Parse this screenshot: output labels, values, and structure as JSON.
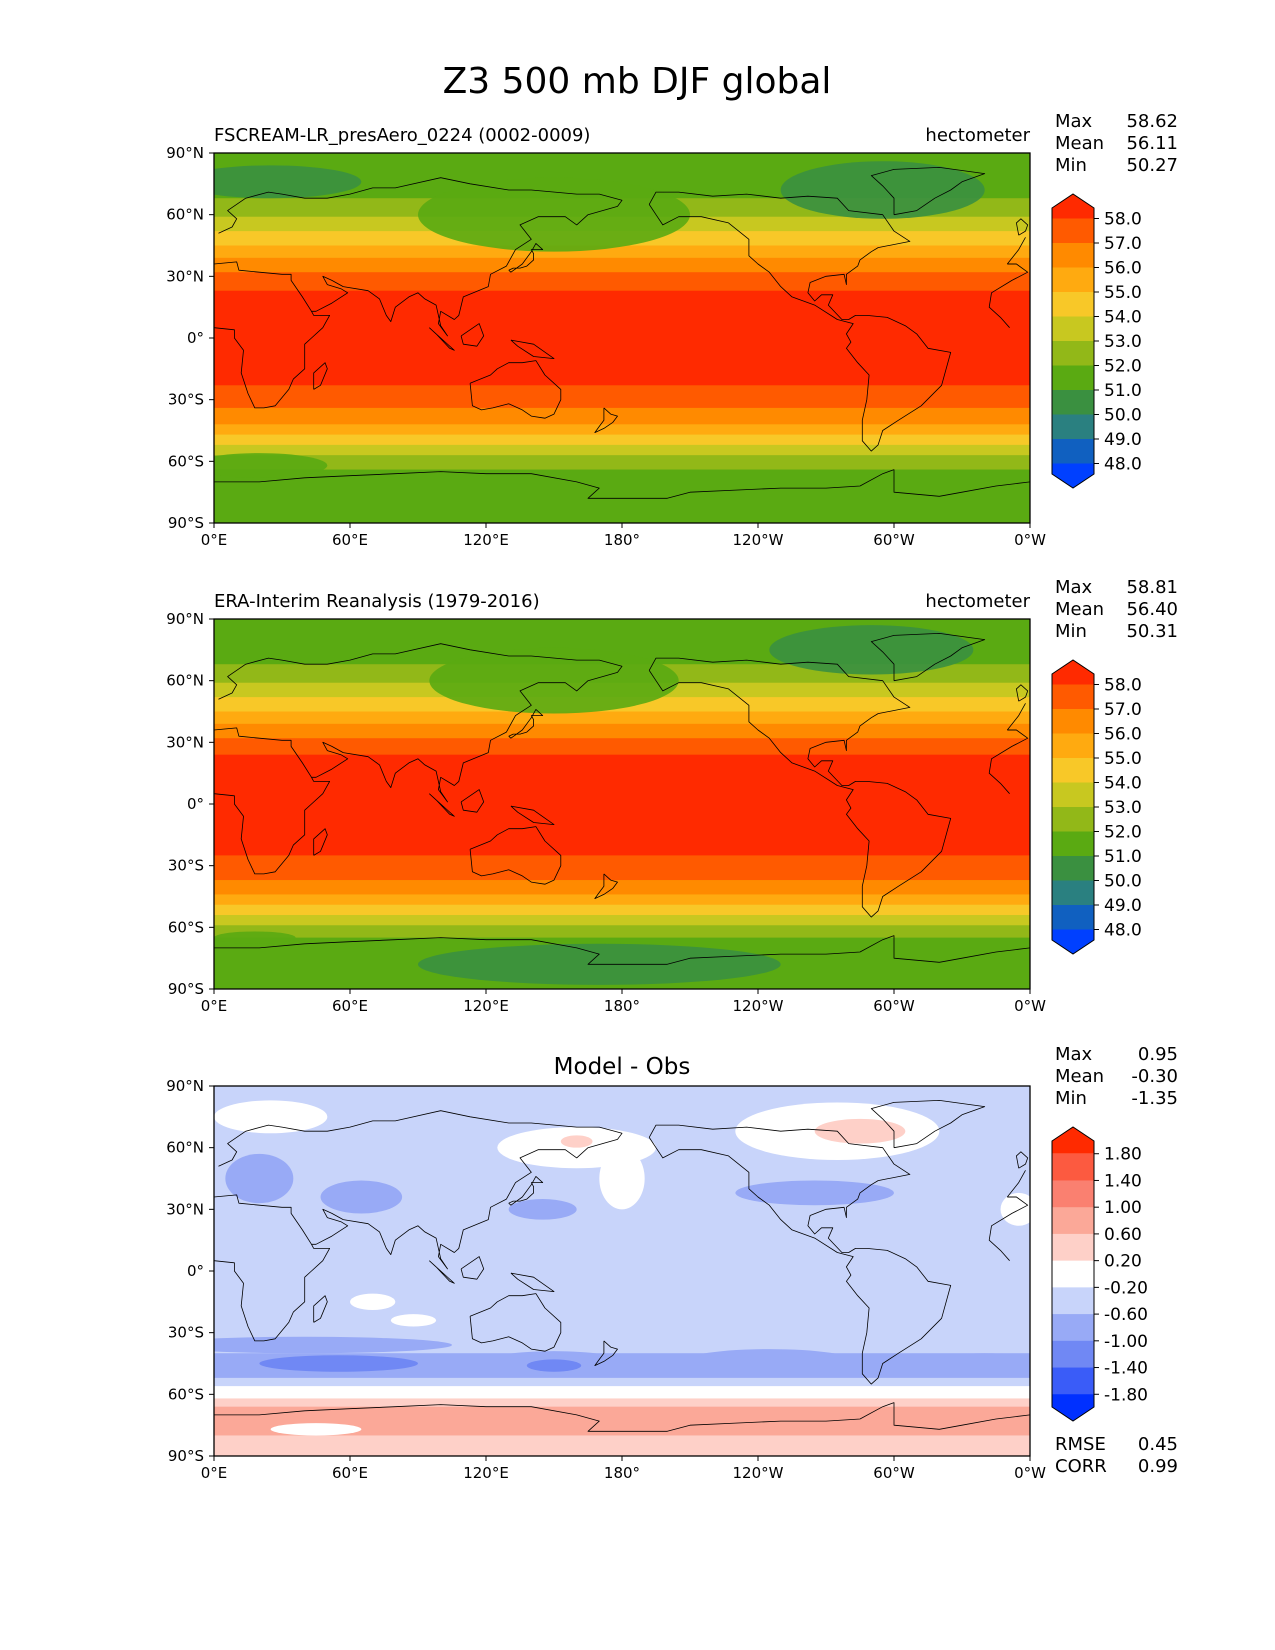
{
  "figure_title": "Z3 500 mb DJF global",
  "chart_data": [
    {
      "type": "heatmap",
      "title": "",
      "subtitle_left": "FSCREAM-LR_presAero_0224 (0002-0009)",
      "subtitle_right": "hectometer",
      "xticks": [
        "0°E",
        "60°E",
        "120°E",
        "180°",
        "120°W",
        "60°W",
        "0°W"
      ],
      "yticks": [
        "90°N",
        "60°N",
        "30°N",
        "0°",
        "30°S",
        "60°S",
        "90°S"
      ],
      "xlim": [
        0,
        360
      ],
      "ylim": [
        -90,
        90
      ],
      "stats": [
        {
          "label": "Max",
          "value": "58.62"
        },
        {
          "label": "Mean",
          "value": "56.11"
        },
        {
          "label": "Min",
          "value": "50.27"
        }
      ],
      "colorbar": {
        "ticks": [
          "58.0",
          "57.0",
          "56.0",
          "55.0",
          "54.0",
          "53.0",
          "52.0",
          "51.0",
          "50.0",
          "49.0",
          "48.0"
        ],
        "colors": [
          "#ff2a00",
          "#ff5a00",
          "#ff8a00",
          "#ffaa10",
          "#f8c828",
          "#c8c820",
          "#92b818",
          "#5aaa12",
          "#3a9040",
          "#2a8080",
          "#1060c0",
          "#0040ff"
        ]
      },
      "lat_profile": [
        [
          90,
          51.0
        ],
        [
          75,
          51.5
        ],
        [
          65,
          52.2
        ],
        [
          55,
          53.5
        ],
        [
          48,
          54.5
        ],
        [
          42,
          55.5
        ],
        [
          36,
          56.5
        ],
        [
          30,
          57.2
        ],
        [
          22,
          58.1
        ],
        [
          0,
          58.4
        ],
        [
          -22,
          58.1
        ],
        [
          -32,
          57.3
        ],
        [
          -40,
          56.3
        ],
        [
          -46,
          55.2
        ],
        [
          -52,
          54.0
        ],
        [
          -58,
          52.8
        ],
        [
          -65,
          51.8
        ],
        [
          -75,
          51.3
        ],
        [
          -90,
          51.2
        ]
      ],
      "anomalies": [
        {
          "lon": 150,
          "lat": 60,
          "rx": 60,
          "ry": 18,
          "dv": -1.6
        },
        {
          "lon": 295,
          "lat": 72,
          "rx": 45,
          "ry": 14,
          "dv": -1.4
        },
        {
          "lon": 25,
          "lat": 76,
          "rx": 40,
          "ry": 8,
          "dv": -0.8
        },
        {
          "lon": 20,
          "lat": -62,
          "rx": 30,
          "ry": 6,
          "dv": -0.8
        }
      ]
    },
    {
      "type": "heatmap",
      "title": "",
      "subtitle_left": "ERA-Interim Reanalysis (1979-2016)",
      "subtitle_right": "hectometer",
      "xticks": [
        "0°E",
        "60°E",
        "120°E",
        "180°",
        "120°W",
        "60°W",
        "0°W"
      ],
      "yticks": [
        "90°N",
        "60°N",
        "30°N",
        "0°",
        "30°S",
        "60°S",
        "90°S"
      ],
      "xlim": [
        0,
        360
      ],
      "ylim": [
        -90,
        90
      ],
      "stats": [
        {
          "label": "Max",
          "value": "58.81"
        },
        {
          "label": "Mean",
          "value": "56.40"
        },
        {
          "label": "Min",
          "value": "50.31"
        }
      ],
      "colorbar": {
        "ticks": [
          "58.0",
          "57.0",
          "56.0",
          "55.0",
          "54.0",
          "53.0",
          "52.0",
          "51.0",
          "50.0",
          "49.0",
          "48.0"
        ],
        "colors": [
          "#ff2a00",
          "#ff5a00",
          "#ff8a00",
          "#ffaa10",
          "#f8c828",
          "#c8c820",
          "#92b818",
          "#5aaa12",
          "#3a9040",
          "#2a8080",
          "#1060c0",
          "#0040ff"
        ]
      },
      "lat_profile": [
        [
          90,
          51.0
        ],
        [
          75,
          51.5
        ],
        [
          65,
          52.2
        ],
        [
          55,
          53.5
        ],
        [
          48,
          54.5
        ],
        [
          42,
          55.5
        ],
        [
          36,
          56.5
        ],
        [
          30,
          57.3
        ],
        [
          22,
          58.2
        ],
        [
          0,
          58.5
        ],
        [
          -22,
          58.2
        ],
        [
          -32,
          57.6
        ],
        [
          -40,
          56.7
        ],
        [
          -46,
          55.6
        ],
        [
          -52,
          54.4
        ],
        [
          -58,
          53.2
        ],
        [
          -65,
          52.0
        ],
        [
          -75,
          51.4
        ],
        [
          -90,
          51.3
        ]
      ],
      "anomalies": [
        {
          "lon": 150,
          "lat": 60,
          "rx": 55,
          "ry": 16,
          "dv": -1.5
        },
        {
          "lon": 290,
          "lat": 75,
          "rx": 45,
          "ry": 12,
          "dv": -1.3
        },
        {
          "lon": 170,
          "lat": -78,
          "rx": 80,
          "ry": 10,
          "dv": -1.0
        },
        {
          "lon": 18,
          "lat": -65,
          "rx": 18,
          "ry": 3,
          "dv": -1.0
        }
      ]
    },
    {
      "type": "heatmap",
      "title": "Model - Obs",
      "subtitle_left": "",
      "subtitle_right": "",
      "xticks": [
        "0°E",
        "60°E",
        "120°E",
        "180°",
        "120°W",
        "60°W",
        "0°W"
      ],
      "yticks": [
        "90°N",
        "60°N",
        "30°N",
        "0°",
        "30°S",
        "60°S",
        "90°S"
      ],
      "xlim": [
        0,
        360
      ],
      "ylim": [
        -90,
        90
      ],
      "stats": [
        {
          "label": "Max",
          "value": "0.95"
        },
        {
          "label": "Mean",
          "value": "-0.30"
        },
        {
          "label": "Min",
          "value": "-1.35"
        }
      ],
      "colorbar": {
        "ticks": [
          "1.80",
          "1.40",
          "1.00",
          "0.60",
          "0.20",
          "-0.20",
          "-0.60",
          "-1.00",
          "-1.40",
          "-1.80"
        ],
        "colors": [
          "#ff2a00",
          "#fc5a40",
          "#fa8070",
          "#fba898",
          "#fed0c8",
          "#ffffff",
          "#c8d4fa",
          "#98aaf6",
          "#7088f4",
          "#3a5cf8",
          "#0030ff"
        ]
      },
      "extra_stats": [
        {
          "label": "RMSE",
          "value": "0.45"
        },
        {
          "label": "CORR",
          "value": "0.99"
        }
      ],
      "bands": [
        {
          "from": 90,
          "to": 80,
          "value": -0.4
        },
        {
          "from": 80,
          "to": -40,
          "value": -0.4
        },
        {
          "from": -40,
          "to": -52,
          "value": -0.75
        },
        {
          "from": -52,
          "to": -56,
          "value": -0.4
        },
        {
          "from": -56,
          "to": -62,
          "value": 0.0
        },
        {
          "from": -62,
          "to": -66,
          "value": 0.4
        },
        {
          "from": -66,
          "to": -80,
          "value": 0.75
        },
        {
          "from": -80,
          "to": -90,
          "value": 0.4
        }
      ],
      "anomalies": [
        {
          "lon": 275,
          "lat": 68,
          "rx": 45,
          "ry": 14,
          "v": 0.0
        },
        {
          "lon": 285,
          "lat": 68,
          "rx": 20,
          "ry": 6,
          "v": 0.4
        },
        {
          "lon": 160,
          "lat": 60,
          "rx": 35,
          "ry": 10,
          "v": 0.0
        },
        {
          "lon": 180,
          "lat": 45,
          "rx": 10,
          "ry": 15,
          "v": 0.0
        },
        {
          "lon": 160,
          "lat": 63,
          "rx": 7,
          "ry": 3,
          "v": 0.4
        },
        {
          "lon": 25,
          "lat": 75,
          "rx": 25,
          "ry": 8,
          "v": 0.0
        },
        {
          "lon": 20,
          "lat": 45,
          "rx": 15,
          "ry": 12,
          "v": -0.8
        },
        {
          "lon": 65,
          "lat": 36,
          "rx": 18,
          "ry": 8,
          "v": -0.8
        },
        {
          "lon": 145,
          "lat": 30,
          "rx": 15,
          "ry": 5,
          "v": -0.8
        },
        {
          "lon": 265,
          "lat": 38,
          "rx": 35,
          "ry": 6,
          "v": -0.8
        },
        {
          "lon": 40,
          "lat": -36,
          "rx": 65,
          "ry": 4,
          "v": -0.8
        },
        {
          "lon": 55,
          "lat": -45,
          "rx": 35,
          "ry": 4,
          "v": -1.2
        },
        {
          "lon": 150,
          "lat": -44,
          "rx": 30,
          "ry": 5,
          "v": -0.8
        },
        {
          "lon": 150,
          "lat": -46,
          "rx": 12,
          "ry": 3,
          "v": -1.2
        },
        {
          "lon": 245,
          "lat": -44,
          "rx": 38,
          "ry": 6,
          "v": -0.8
        },
        {
          "lon": 340,
          "lat": -44,
          "rx": 20,
          "ry": 4,
          "v": -0.8
        },
        {
          "lon": 70,
          "lat": -15,
          "rx": 10,
          "ry": 4,
          "v": 0.0
        },
        {
          "lon": 88,
          "lat": -24,
          "rx": 10,
          "ry": 3,
          "v": 0.0
        },
        {
          "lon": 45,
          "lat": -77,
          "rx": 20,
          "ry": 3,
          "v": 0.0
        },
        {
          "lon": 355,
          "lat": 30,
          "rx": 8,
          "ry": 8,
          "v": 0.0
        }
      ]
    }
  ]
}
